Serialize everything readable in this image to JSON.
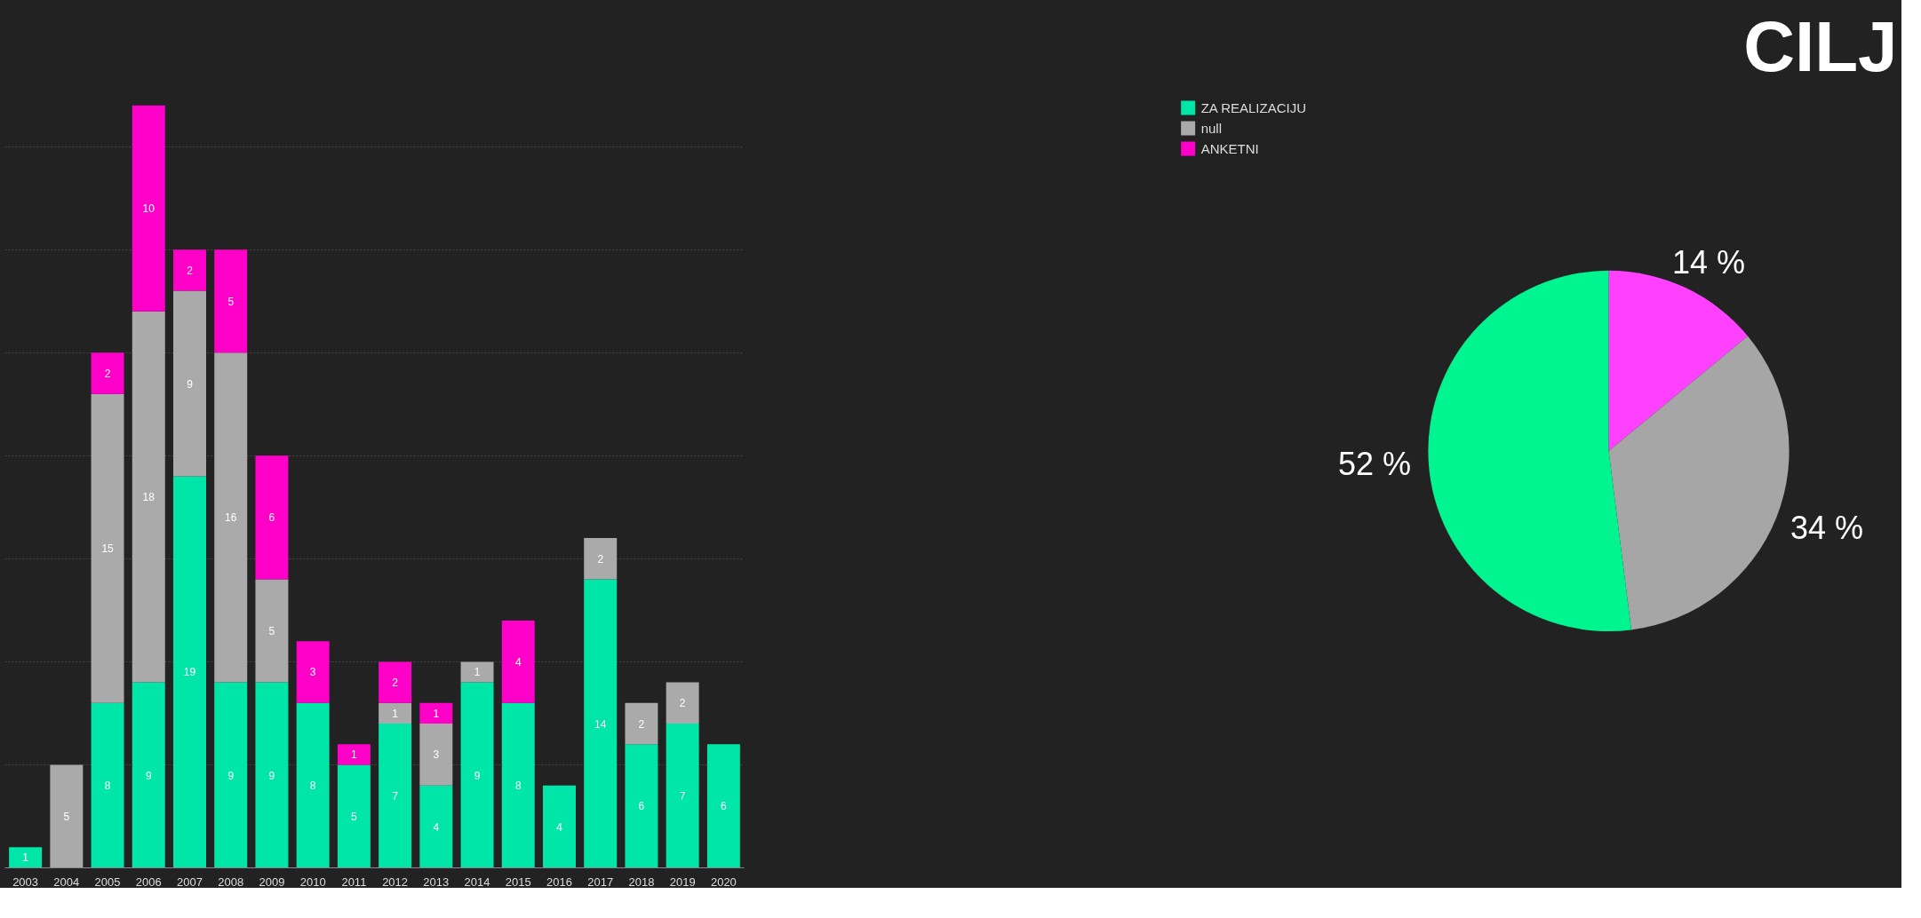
{
  "chart_data": [
    {
      "type": "bar",
      "stacked": true,
      "categories": [
        "2003",
        "2004",
        "2005",
        "2006",
        "2007",
        "2008",
        "2009",
        "2010",
        "2011",
        "2012",
        "2013",
        "2014",
        "2015",
        "2016",
        "2017",
        "2018",
        "2019",
        "2020"
      ],
      "series": [
        {
          "name": "ZA REALIZACIJU",
          "color": "#00e5a8",
          "values": [
            1,
            null,
            8,
            9,
            19,
            9,
            9,
            8,
            5,
            7,
            4,
            9,
            8,
            4,
            14,
            6,
            7,
            6
          ]
        },
        {
          "name": "null",
          "color": "#aaaaaa",
          "values": [
            null,
            5,
            15,
            18,
            9,
            16,
            5,
            null,
            null,
            1,
            3,
            1,
            null,
            null,
            2,
            2,
            2,
            null
          ]
        },
        {
          "name": "ANKETNI",
          "color": "#ff00c8",
          "values": [
            null,
            null,
            2,
            10,
            2,
            5,
            6,
            3,
            1,
            2,
            1,
            null,
            4,
            null,
            null,
            null,
            null,
            null
          ]
        }
      ],
      "data_labels": true,
      "grid": "y",
      "tick_labels": "x",
      "legend": "right"
    },
    {
      "type": "pie",
      "title": "CILJ",
      "categories": [
        null,
        null,
        null
      ],
      "values": [
        14,
        34,
        52
      ],
      "colors": [
        "#ff40ff",
        "#a6a6a6",
        "#00f590"
      ],
      "value_labels": [
        "14 %",
        "34 %",
        "52 %"
      ]
    }
  ]
}
